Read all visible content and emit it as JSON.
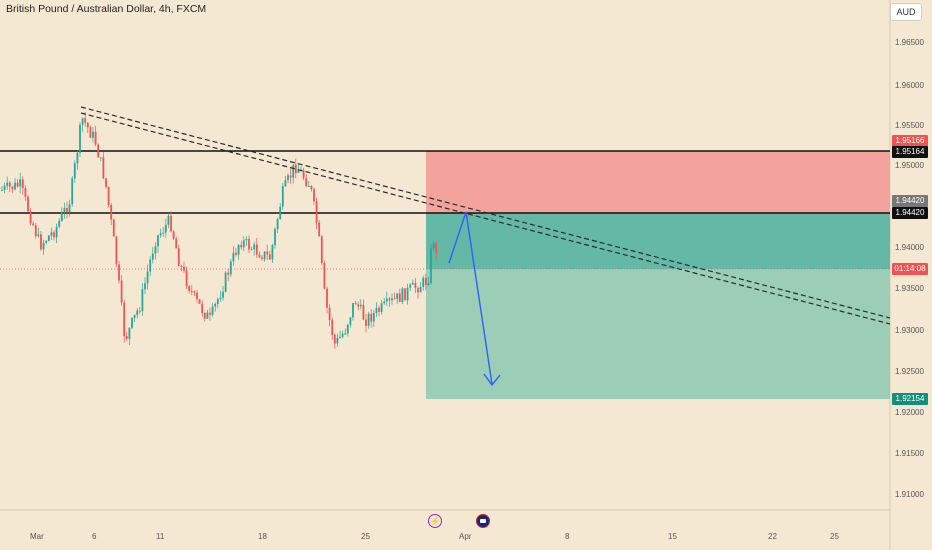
{
  "header": {
    "title": "British Pound / Australian Dollar, 4h, FXCM",
    "currency": "AUD"
  },
  "price_axis": {
    "labels": [
      "1.96500",
      "1.96000",
      "1.95500",
      "1.95000",
      "1.94000",
      "1.93500",
      "1.93000",
      "1.92500",
      "1.92000",
      "1.91500",
      "1.91000"
    ]
  },
  "time_axis": {
    "labels": [
      "Mar",
      "6",
      "11",
      "18",
      "25",
      "Apr",
      "8",
      "15",
      "22",
      "25"
    ]
  },
  "price_tags": {
    "stop_level": "1.95166",
    "upper_line": "1.95164",
    "entry_top": "1.94420",
    "entry_line": "1.94420",
    "countdown": "01:14:08",
    "target": "1.92154"
  },
  "events": {
    "flash_icon": "lightning-icon",
    "flag_icon": "australia-flag-icon"
  },
  "colors": {
    "background": "#f5e8d3",
    "candle_up": "#26a69a",
    "candle_down": "#ef5350",
    "stop_zone": "#f3a39c",
    "profit_zone_dark": "#63b8a6",
    "profit_zone_light": "#9ccdb6",
    "stop_tag": "#f05350",
    "target_tag": "#138f7c",
    "countdown_tag": "#f05350",
    "trendline": "#2b2b2b",
    "arrow": "#2962ff"
  },
  "chart_data": {
    "type": "candlestick",
    "symbol": "GBPAUD",
    "timeframe": "4h",
    "ylim": [
      1.906,
      1.9685
    ],
    "horizontal_levels": [
      1.95164,
      1.9442
    ],
    "short_position": {
      "entry": 1.9442,
      "stop_loss": 1.95166,
      "take_profit": 1.92154,
      "current_price": 1.9375
    },
    "trendline": {
      "from": [
        "Mar 5",
        1.957
      ],
      "to": [
        "Apr 27",
        1.9315
      ]
    },
    "projected_path": [
      1.9375,
      1.9442,
      1.9235
    ]
  }
}
